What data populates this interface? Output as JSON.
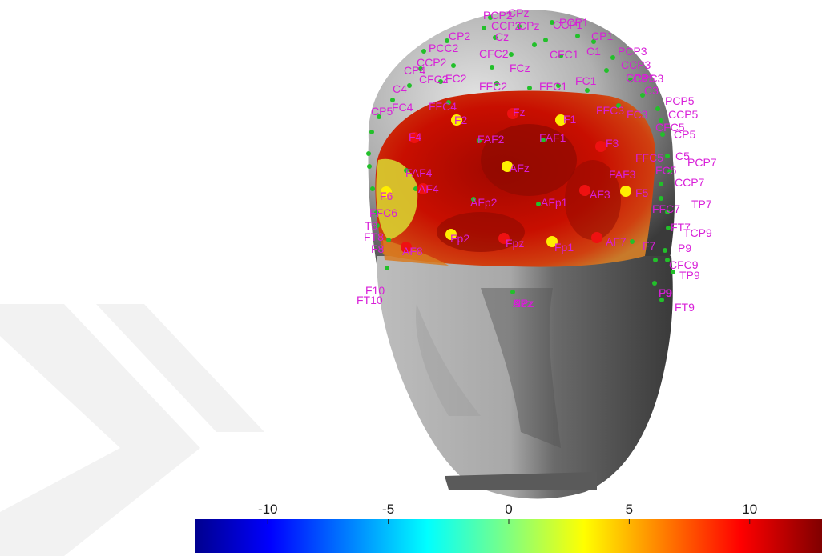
{
  "figure": {
    "colormap": "jet",
    "colorbar": {
      "ticks": [
        -10,
        -5,
        0,
        5,
        10
      ],
      "tick_labels": [
        "-10",
        "-5",
        "0",
        "5",
        "10"
      ],
      "range": [
        -13,
        13
      ]
    },
    "colors": {
      "label": "#d81fd8",
      "electrode_green": "#22c02a",
      "active_red": "#ee1111",
      "active_yellow": "#ffee00",
      "head_light": "#cfcfcf",
      "head_dark": "#2f2f2f",
      "activation_dark": "#8e0a00",
      "activation_red": "#cc0e00",
      "activation_orange": "#d8701c",
      "activation_yellow": "#d8d430"
    },
    "electrode_labels": [
      "PCP2",
      "CPz",
      "PCP1",
      "CCP2",
      "CPz",
      "CCP1",
      "CP2",
      "CP1",
      "PCC2",
      "Cz",
      "CFC2",
      "CFC1",
      "C1",
      "PCP3",
      "CCP3",
      "CP3",
      "FCz",
      "CFC2",
      "FC2",
      "CCP2",
      "CP4",
      "CPC3",
      "CP5",
      "C4",
      "FFC2",
      "FC1",
      "FFC1",
      "C3",
      "PCP5",
      "CCP5",
      "FC4",
      "FFC4",
      "FFC3",
      "FC3",
      "CP5",
      "F2",
      "Fz",
      "F1",
      "CFC5",
      "CP5",
      "F4",
      "FAF2",
      "FAF1",
      "F3",
      "C5",
      "PCP7",
      "FFC5",
      "FC5",
      "FAF4",
      "AFz",
      "FAF3",
      "CCP7",
      "F6",
      "AF4",
      "AFp2",
      "AFp1",
      "AF3",
      "F5",
      "FFC7",
      "TP7",
      "FFC6",
      "FT7",
      "T8",
      "FT8",
      "TCP9",
      "F8",
      "Fp2",
      "Fpz",
      "Fp1",
      "AF7",
      "F7",
      "P9",
      "AF8",
      "CFC9",
      "TP9",
      "F10",
      "F9",
      "P9",
      "FT10",
      "FT9",
      "Nz",
      "CPz",
      "AFz"
    ],
    "active_electrodes": {
      "red": [
        "F4",
        "Fz",
        "F3",
        "AF4",
        "AF3",
        "Fpz",
        "AF7",
        "AF8"
      ],
      "yellow": [
        "F2",
        "F1",
        "AFz",
        "F6",
        "F5",
        "Fp2",
        "Fp1"
      ]
    }
  }
}
